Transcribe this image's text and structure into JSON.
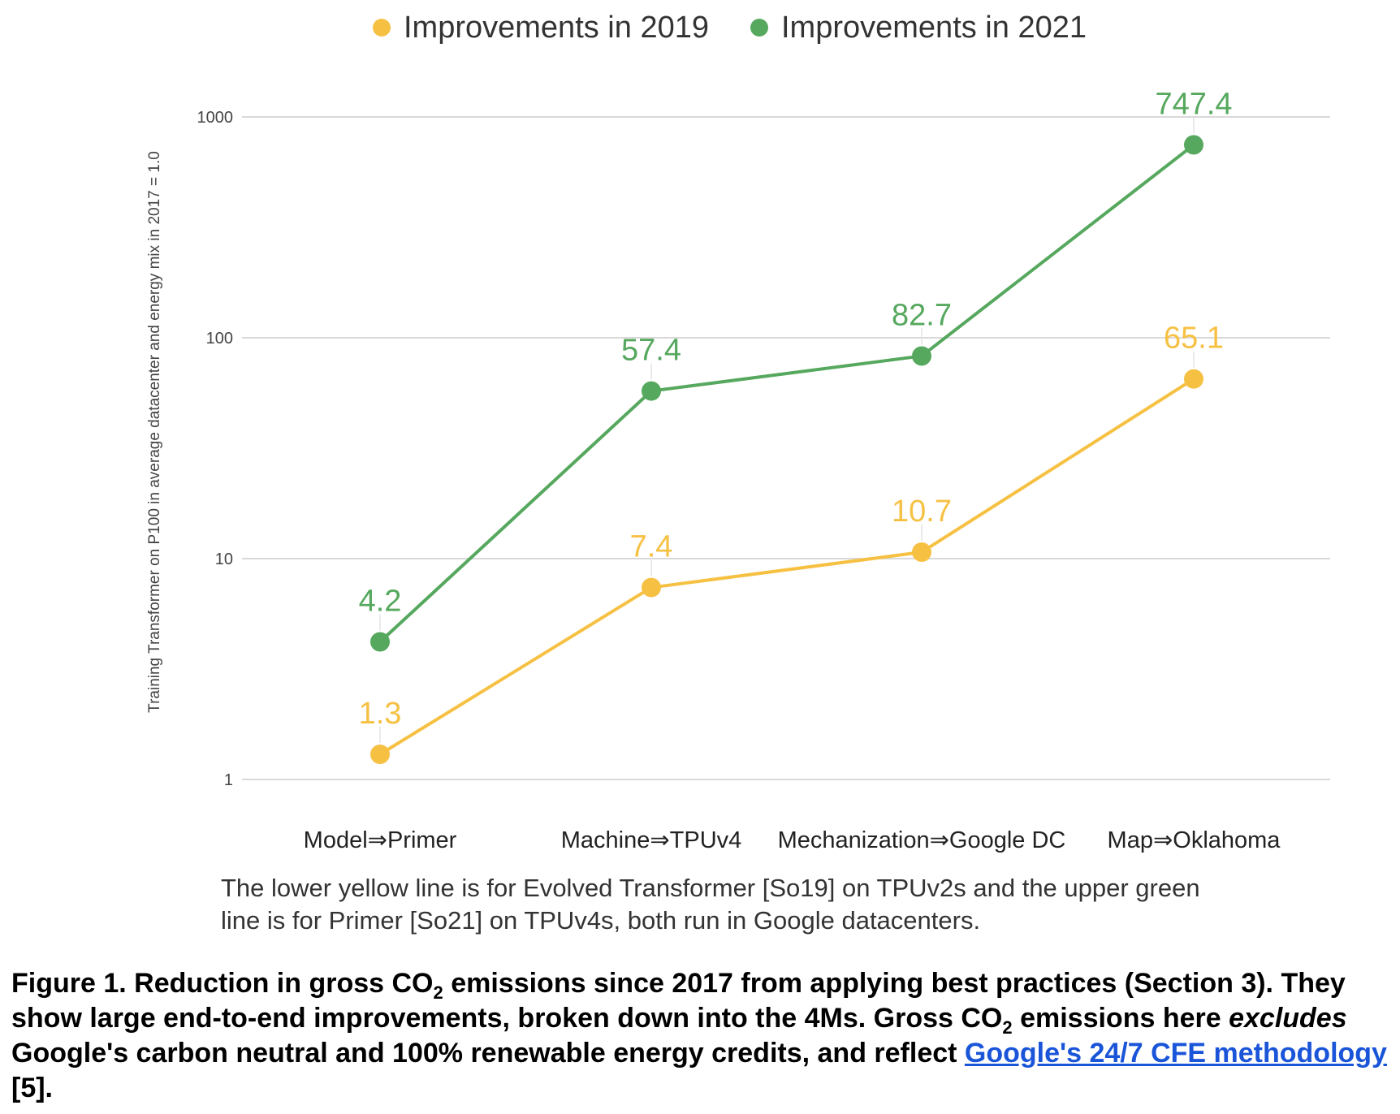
{
  "chart_data": {
    "type": "line",
    "categories": [
      "Model⇒Primer",
      "Machine⇒TPUv4",
      "Mechanization⇒Google DC",
      "Map⇒Oklahoma"
    ],
    "series": [
      {
        "name": "Improvements in 2019",
        "color": "#f6c143",
        "values": [
          1.3,
          7.4,
          10.7,
          65.1
        ],
        "labels": [
          "1.3",
          "7.4",
          "10.7",
          "65.1"
        ]
      },
      {
        "name": "Improvements in 2021",
        "color": "#56a85e",
        "values": [
          4.2,
          57.4,
          82.7,
          747.4
        ],
        "labels": [
          "4.2",
          "57.4",
          "82.7",
          "747.4"
        ]
      }
    ],
    "ylabel": "Training Transformer on P100 in average datacenter and energy mix in 2017 = 1.0",
    "yscale": "log",
    "ylim": [
      1,
      1000
    ],
    "yticks": [
      1,
      10,
      100,
      1000
    ],
    "ytick_labels": [
      "1",
      "10",
      "100",
      "1000"
    ],
    "grid": true,
    "legend_position": "top-center"
  },
  "note": {
    "line1": "The lower yellow line is for Evolved Transformer [So19] on TPUv2s and the upper green",
    "line2": "line is for Primer [So21] on TPUv4s, both run in Google datacenters."
  },
  "caption": {
    "part1": "Figure 1. Reduction in gross CO",
    "sub1": "2",
    "part2": " emissions since 2017 from applying best practices (Section 3). They show large end-to-end improvements, broken down into the 4Ms. Gross CO",
    "sub2": "2",
    "part3": " emissions here ",
    "emph": "excludes",
    "part4": " Google's carbon neutral and 100% renewable energy credits, and reflect ",
    "link": "Google's 24/7 CFE methodology",
    "part5": " [5]."
  }
}
